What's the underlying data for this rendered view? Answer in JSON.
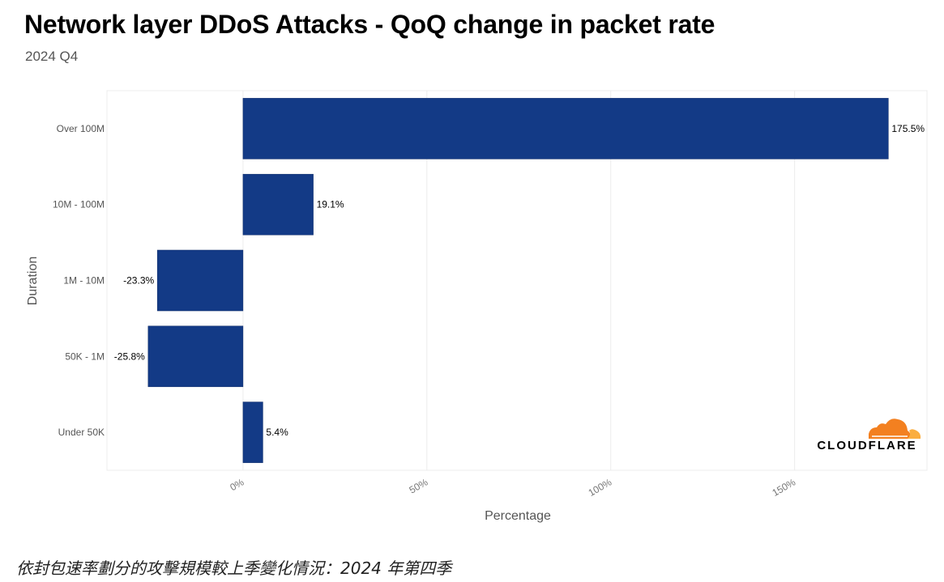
{
  "header": {
    "title": "Network layer DDoS Attacks - QoQ change in packet rate",
    "subtitle": "2024 Q4"
  },
  "caption": "依封包速率劃分的攻擊規模較上季變化情況：2024 年第四季",
  "logo": {
    "text": "CLOUDFLARE",
    "icon": "cloudflare-cloud-icon",
    "color_primary": "#F38020",
    "color_secondary": "#FAAE40"
  },
  "chart_data": {
    "type": "bar",
    "orientation": "horizontal",
    "categories": [
      "Over 100M",
      "10M - 100M",
      "1M - 10M",
      "50K - 1M",
      "Under 50K"
    ],
    "values": [
      175.5,
      19.1,
      -23.3,
      -25.8,
      5.4
    ],
    "value_labels": [
      "175.5%",
      "19.1%",
      "-23.3%",
      "-25.8%",
      "5.4%"
    ],
    "xlabel": "Percentage",
    "ylabel": "Duration",
    "x_ticks": [
      0,
      50,
      100,
      150
    ],
    "x_tick_labels": [
      "0%",
      "50%",
      "100%",
      "150%"
    ],
    "xlim": [
      -37,
      186
    ],
    "grid": true,
    "bar_color": "#133A86"
  }
}
